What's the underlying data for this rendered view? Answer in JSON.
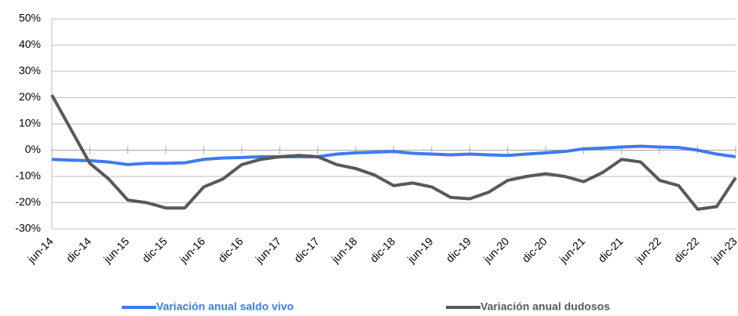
{
  "chart_data": {
    "type": "line",
    "categories": [
      "jun-14",
      null,
      "dic-14",
      null,
      "jun-15",
      null,
      "dic-15",
      null,
      "jun-16",
      null,
      "dic-16",
      null,
      "jun-17",
      null,
      "dic-17",
      null,
      "jun-18",
      null,
      "dic-18",
      null,
      "jun-19",
      null,
      "dic-19",
      null,
      "jun-20",
      null,
      "dic-20",
      null,
      "jun-21",
      null,
      "dic-21",
      null,
      "jun-22",
      null,
      "dic-22",
      null,
      "jun-23"
    ],
    "series": [
      {
        "name": "Variación anual saldo vivo",
        "color": "#3d7bf0",
        "values": [
          -3.5,
          -3.8,
          -4,
          -4.5,
          -5.5,
          -5,
          -5,
          -4.8,
          -3.5,
          -3,
          -2.8,
          -2.5,
          -2.5,
          -2.5,
          -2.5,
          -1.5,
          -1,
          -0.8,
          -0.5,
          -1.2,
          -1.5,
          -1.8,
          -1.5,
          -1.8,
          -2,
          -1.5,
          -1,
          -0.5,
          0.5,
          0.8,
          1.2,
          1.5,
          1.2,
          1,
          0,
          -1.5,
          -2.5
        ]
      },
      {
        "name": "Variación anual dudosos",
        "color": "#595959",
        "values": [
          21,
          8,
          -5,
          -11,
          -19,
          -20,
          -22,
          -22,
          -14,
          -11,
          -5.5,
          -3.5,
          -2.5,
          -2,
          -2.5,
          -5.5,
          -7,
          -9.5,
          -13.5,
          -12.5,
          -14,
          -18,
          -18.5,
          -16,
          -11.5,
          -10,
          -9,
          -10,
          -12,
          -8.5,
          -3.5,
          -4.5,
          -11.5,
          -13.5,
          -22.5,
          -21.5,
          -10.5
        ]
      }
    ],
    "ylim": [
      -30,
      50
    ],
    "yticks": [
      {
        "value": -30,
        "label": "-30%"
      },
      {
        "value": -20,
        "label": "-20%"
      },
      {
        "value": -10,
        "label": "-10%"
      },
      {
        "value": 0,
        "label": "0%"
      },
      {
        "value": 10,
        "label": "10%"
      },
      {
        "value": 20,
        "label": "20%"
      },
      {
        "value": 30,
        "label": "30%"
      },
      {
        "value": 40,
        "label": "40%"
      },
      {
        "value": 50,
        "label": "50%"
      }
    ],
    "grid": true,
    "legend": "bottom"
  }
}
